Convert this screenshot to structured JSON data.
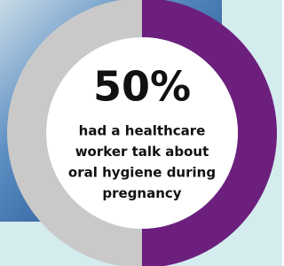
{
  "chart_data": {
    "type": "donut",
    "values": [
      50,
      50
    ],
    "value_labels": [
      "50%",
      null
    ],
    "colors": [
      "#6c1f7d",
      "#c9c9c9"
    ],
    "annotation": [
      "had a healthcare",
      "worker talk about",
      "oral hygiene during",
      "pregnancy"
    ]
  }
}
